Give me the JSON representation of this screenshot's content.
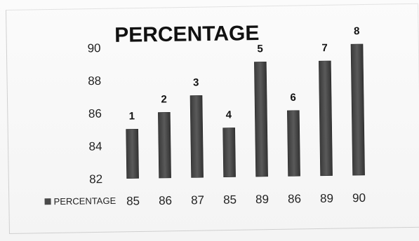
{
  "chart_data": {
    "type": "bar",
    "title": "PERCENTAGE",
    "xlabel": "",
    "ylabel": "",
    "categories": [
      "1",
      "2",
      "3",
      "4",
      "5",
      "6",
      "7",
      "8"
    ],
    "series": [
      {
        "name": "PERCENTAGE",
        "values": [
          85,
          86,
          87,
          85,
          89,
          86,
          89,
          90
        ]
      }
    ],
    "ylim": [
      82,
      90
    ],
    "yticks": [
      "82",
      "84",
      "86",
      "88",
      "90"
    ],
    "table_values": [
      "85",
      "86",
      "87",
      "85",
      "89",
      "86",
      "89",
      "90"
    ],
    "grid": false,
    "legend": "bottom-left data table",
    "colors": {
      "bar": "#4a4a4a",
      "bar_dark": "#2a2a2a"
    }
  }
}
